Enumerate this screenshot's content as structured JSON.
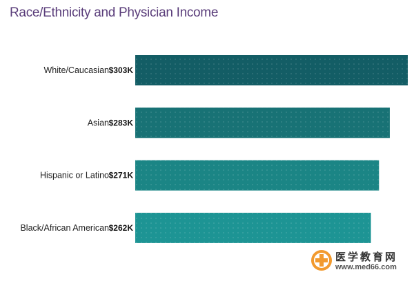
{
  "chart_data": {
    "type": "bar",
    "orientation": "horizontal",
    "title": "Race/Ethnicity and Physician Income",
    "categories": [
      "White/Caucasian",
      "Asian",
      "Hispanic or Latino",
      "Black/African American"
    ],
    "values": [
      303,
      283,
      271,
      262
    ],
    "value_labels": [
      "$303K",
      "$283K",
      "$271K",
      "$262K"
    ],
    "unit": "$K",
    "xlim": [
      0,
      303
    ],
    "bar_colors": [
      "#135d65",
      "#187275",
      "#1b8585",
      "#1d9494"
    ]
  },
  "watermark": {
    "chinese_text": "医学教育网",
    "url": "www.med66.com"
  }
}
